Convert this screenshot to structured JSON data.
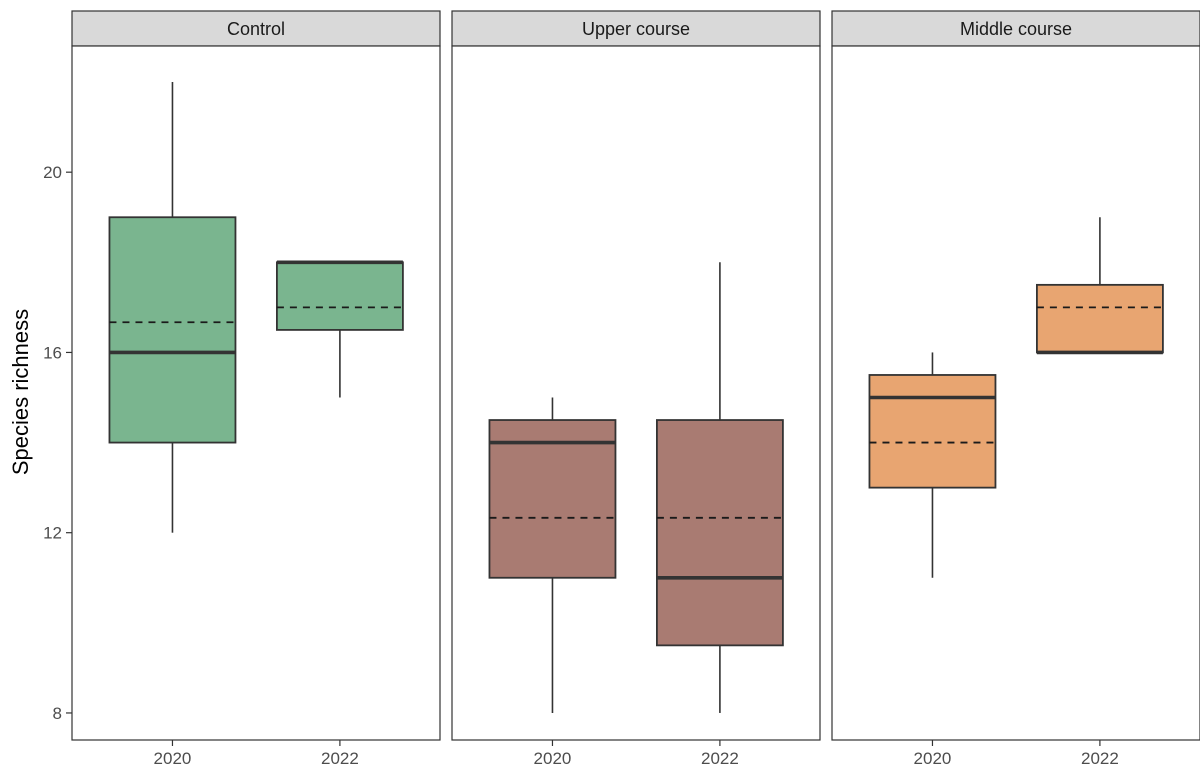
{
  "chart_data": {
    "type": "boxplot",
    "ylabel": "Species richness",
    "xlabel": "",
    "ylim": [
      7.4,
      22.8
    ],
    "yticks": [
      8,
      12,
      16,
      20
    ],
    "categories": [
      "2020",
      "2022"
    ],
    "panels": [
      {
        "name": "Control",
        "color": "#7ab58f",
        "boxes": [
          {
            "category": "2020",
            "min": 12,
            "q1": 14,
            "median": 16,
            "q3": 19,
            "max": 22,
            "mean": 16.67
          },
          {
            "category": "2022",
            "min": 15,
            "q1": 16.5,
            "median": 18,
            "q3": 18,
            "max": 18,
            "mean": 17
          }
        ]
      },
      {
        "name": "Upper course",
        "color": "#a97b72",
        "boxes": [
          {
            "category": "2020",
            "min": 8,
            "q1": 11,
            "median": 14,
            "q3": 14.5,
            "max": 15,
            "mean": 12.33
          },
          {
            "category": "2022",
            "min": 8,
            "q1": 9.5,
            "median": 11,
            "q3": 14.5,
            "max": 18,
            "mean": 12.33
          }
        ]
      },
      {
        "name": "Middle course",
        "color": "#e8a571",
        "boxes": [
          {
            "category": "2020",
            "min": 11,
            "q1": 13,
            "median": 15,
            "q3": 15.5,
            "max": 16,
            "mean": 14
          },
          {
            "category": "2022",
            "min": 16,
            "q1": 16,
            "median": 16,
            "q3": 17.5,
            "max": 19,
            "mean": 17
          }
        ]
      }
    ],
    "grid": false,
    "legend": "none"
  }
}
